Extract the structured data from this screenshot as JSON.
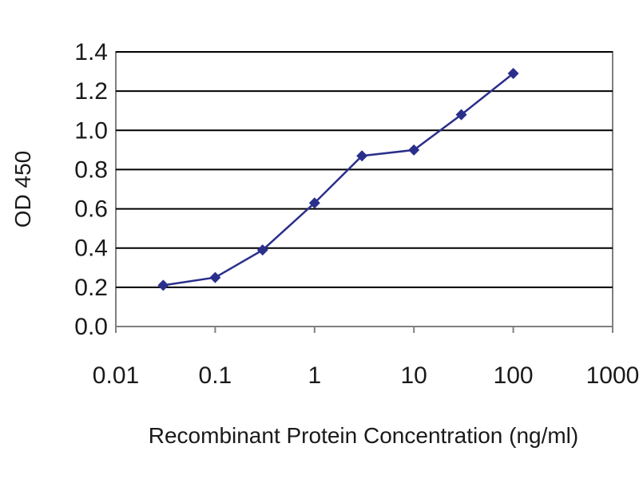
{
  "chart_data": {
    "type": "line",
    "title": "",
    "xlabel": "Recombinant Protein Concentration (ng/ml)",
    "ylabel": "OD 450",
    "x_scale": "log",
    "xlim": [
      0.01,
      1000
    ],
    "ylim": [
      0,
      1.4
    ],
    "x_ticks": [
      0.01,
      0.1,
      1,
      10,
      100,
      1000
    ],
    "x_tick_labels": [
      "0.01",
      "0.1",
      "1",
      "10",
      "100",
      "1000"
    ],
    "y_ticks": [
      0,
      0.2,
      0.4,
      0.6,
      0.8,
      1.0,
      1.2,
      1.4
    ],
    "y_tick_labels": [
      "0.0",
      "0.2",
      "0.4",
      "0.6",
      "0.8",
      "1.0",
      "1.2",
      "1.4"
    ],
    "grid": "horizontal",
    "legend": "none",
    "colors": {
      "series": "#2b2f8c",
      "grid": "#000000",
      "frame": "#808080"
    },
    "series": [
      {
        "x": [
          0.03,
          0.1,
          0.3,
          1,
          3,
          10,
          30,
          100
        ],
        "values": [
          0.21,
          0.25,
          0.39,
          0.63,
          0.87,
          0.9,
          1.08,
          1.29
        ]
      }
    ]
  }
}
